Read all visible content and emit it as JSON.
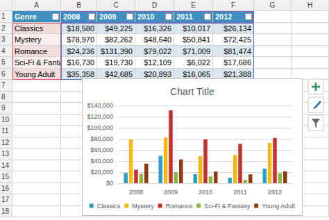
{
  "chart_data": {
    "type": "bar",
    "title": "Chart Title",
    "categories": [
      "2008",
      "2009",
      "2010",
      "2011",
      "2012"
    ],
    "series": [
      {
        "name": "Classics",
        "color": "#2e9fc4",
        "values": [
          18580,
          49225,
          16326,
          10017,
          26134
        ]
      },
      {
        "name": "Mystery",
        "color": "#f6b80f",
        "values": [
          78970,
          82262,
          48640,
          50841,
          72425
        ]
      },
      {
        "name": "Romance",
        "color": "#c8302e",
        "values": [
          24236,
          131390,
          79022,
          71009,
          81474
        ]
      },
      {
        "name": "Sci-Fi & Fantasy",
        "color": "#8ab53f",
        "values": [
          16730,
          19730,
          12109,
          6022,
          17686
        ]
      },
      {
        "name": "Young Adult",
        "color": "#8c3b10",
        "values": [
          35358,
          42685,
          20893,
          16065,
          21388
        ]
      }
    ],
    "ylim": [
      0,
      140000
    ],
    "yticks": [
      {
        "value": 0,
        "label": "$0"
      },
      {
        "value": 20000,
        "label": "$20,000"
      },
      {
        "value": 40000,
        "label": "$40,000"
      },
      {
        "value": 60000,
        "label": "$60,000"
      },
      {
        "value": 80000,
        "label": "$80,000"
      },
      {
        "value": 100000,
        "label": "$100,000"
      },
      {
        "value": 120000,
        "label": "$120,000"
      },
      {
        "value": 140000,
        "label": "$140,000"
      }
    ],
    "grid": true,
    "legend": "bottom"
  },
  "sheet": {
    "column_letters": [
      "A",
      "B",
      "C",
      "D",
      "E",
      "F",
      "G",
      "H"
    ],
    "row_numbers": [
      1,
      2,
      3,
      4,
      5,
      6,
      7,
      8,
      9,
      10,
      11,
      12,
      13,
      14,
      15,
      16,
      17,
      18
    ]
  },
  "table": {
    "header": [
      "Genre",
      "2008",
      "2009",
      "2010",
      "2011",
      "2012"
    ],
    "rows": [
      [
        "Classics",
        "$18,580",
        "$49,225",
        "$16,326",
        "$10,017",
        "$26,134"
      ],
      [
        "Mystery",
        "$78,970",
        "$82,262",
        "$48,640",
        "$50,841",
        "$72,425"
      ],
      [
        "Romance",
        "$24,236",
        "$131,390",
        "$79,022",
        "$71,009",
        "$81,474"
      ],
      [
        "Sci-Fi & Fantasy",
        "$16,730",
        "$19,730",
        "$12,109",
        "$6,022",
        "$17,686"
      ],
      [
        "Young Adult",
        "$35,358",
        "$42,685",
        "$20,893",
        "$16,065",
        "$21,388"
      ]
    ]
  }
}
